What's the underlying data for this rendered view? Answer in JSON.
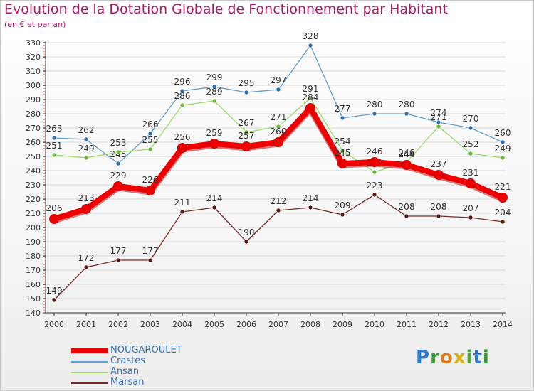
{
  "title": "Evolution de la Dotation Globale de Fonctionnement par Habitant",
  "subtitle": "(en € et par an)",
  "logo_text": "Proxiti",
  "chart_data": {
    "type": "line",
    "title": "Evolution de la Dotation Globale de Fonctionnement par Habitant",
    "ylabel": "(en € et par an)",
    "xlabel": "",
    "ylim": [
      140,
      330
    ],
    "yticks": [
      140,
      150,
      160,
      170,
      180,
      190,
      200,
      210,
      220,
      230,
      240,
      250,
      260,
      270,
      280,
      290,
      300,
      310,
      320,
      330
    ],
    "categories": [
      "2000",
      "2001",
      "2002",
      "2003",
      "2004",
      "2005",
      "2006",
      "2007",
      "2008",
      "2009",
      "2010",
      "2011",
      "2012",
      "2013",
      "2014"
    ],
    "grid": true,
    "legend_position": "bottom-left",
    "series": [
      {
        "name": "Crastes",
        "color": "#5e9dd1",
        "marker": "#2f72b6",
        "labels": "above",
        "values": [
          263,
          262,
          245,
          266,
          296,
          299,
          295,
          297,
          328,
          277,
          280,
          280,
          274,
          270,
          260
        ]
      },
      {
        "name": "Ansan",
        "color": "#99dd66",
        "marker": "#66bb33",
        "labels": "above",
        "values": [
          251,
          249,
          253,
          255,
          286,
          289,
          267,
          271,
          291,
          254,
          239,
          246,
          271,
          252,
          249
        ]
      },
      {
        "name": "Marsan",
        "color": "#7a2a2a",
        "marker": "#5a1515",
        "labels": "above",
        "values": [
          149,
          172,
          177,
          177,
          211,
          214,
          190,
          212,
          214,
          209,
          223,
          208,
          208,
          207,
          204
        ]
      },
      {
        "name": "NOUGAROULET",
        "color": "#ee0000",
        "marker": "#ee0000",
        "labels": "above",
        "values": [
          206,
          213,
          229,
          226,
          256,
          259,
          257,
          260,
          284,
          245,
          246,
          244,
          237,
          231,
          221
        ]
      }
    ],
    "legend_order": [
      "NOUGAROULET",
      "Crastes",
      "Ansan",
      "Marsan"
    ]
  }
}
